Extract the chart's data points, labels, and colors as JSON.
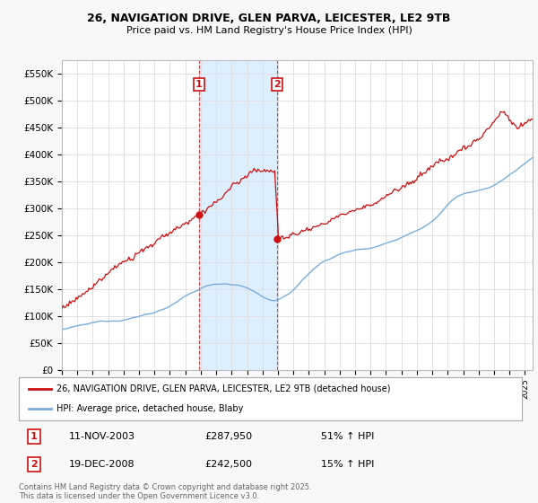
{
  "title_line1": "26, NAVIGATION DRIVE, GLEN PARVA, LEICESTER, LE2 9TB",
  "title_line2": "Price paid vs. HM Land Registry's House Price Index (HPI)",
  "yticks": [
    0,
    50000,
    100000,
    150000,
    200000,
    250000,
    300000,
    350000,
    400000,
    450000,
    500000,
    550000
  ],
  "ytick_labels": [
    "£0",
    "£50K",
    "£100K",
    "£150K",
    "£200K",
    "£250K",
    "£300K",
    "£350K",
    "£400K",
    "£450K",
    "£500K",
    "£550K"
  ],
  "ylim": [
    0,
    575000
  ],
  "xlim_start": 1995.0,
  "xlim_end": 2025.5,
  "sale1_date": 2003.866,
  "sale1_price": 287950,
  "sale2_date": 2008.966,
  "sale2_price": 242500,
  "legend_line1": "26, NAVIGATION DRIVE, GLEN PARVA, LEICESTER, LE2 9TB (detached house)",
  "legend_line2": "HPI: Average price, detached house, Blaby",
  "footer": "Contains HM Land Registry data © Crown copyright and database right 2025.\nThis data is licensed under the Open Government Licence v3.0.",
  "red_color": "#cc1111",
  "blue_color": "#7aaddd",
  "vline_color": "#cc2222",
  "span_color": "#ddeeff",
  "background_color": "#f8f8f8",
  "plot_bg": "#ffffff",
  "grid_color": "#dddddd"
}
